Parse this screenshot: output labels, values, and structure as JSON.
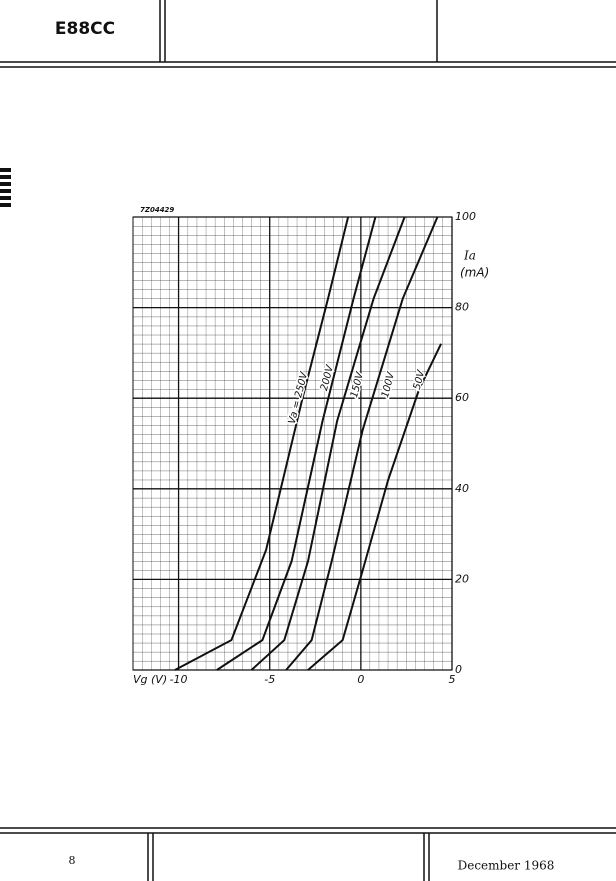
{
  "header": {
    "title": "E88CC"
  },
  "footer": {
    "page": "8",
    "date": "December 1968"
  },
  "chart_data": {
    "type": "line",
    "figure_code": "7Z04429",
    "x_label": "Vg (V)",
    "y_label": "Ia",
    "y_unit": "(mA)",
    "xlim": [
      -12.5,
      5
    ],
    "ylim": [
      0,
      100
    ],
    "xticks": [
      -10,
      -5,
      0,
      5
    ],
    "yticks": [
      0,
      20,
      40,
      60,
      80,
      100
    ],
    "grid": true,
    "series": [
      {
        "name": "Va = 250V",
        "color": "#111111",
        "x": [
          -10.2,
          -7.1,
          -5.2,
          -3.2,
          -1.8,
          -0.7
        ],
        "values": [
          0,
          6.6,
          26.5,
          60,
          82,
          100
        ]
      },
      {
        "name": "200V",
        "color": "#111111",
        "x": [
          -7.9,
          -5.4,
          -3.8,
          -2.1,
          -0.4,
          0.8
        ],
        "values": [
          0,
          6.6,
          24,
          55,
          82,
          100
        ]
      },
      {
        "name": "150V",
        "color": "#111111",
        "x": [
          -6.0,
          -4.2,
          -2.9,
          -1.3,
          0.7,
          2.4
        ],
        "values": [
          0,
          6.6,
          24,
          55,
          82,
          100
        ]
      },
      {
        "name": "100V",
        "color": "#111111",
        "x": [
          -4.1,
          -2.7,
          -1.6,
          0.1,
          2.3,
          4.2
        ],
        "values": [
          0,
          6.6,
          24,
          53,
          82,
          100
        ]
      },
      {
        "name": "50V",
        "color": "#111111",
        "x": [
          -2.9,
          -1.0,
          0.1,
          1.5,
          3.2,
          4.4
        ],
        "values": [
          0,
          6.6,
          22,
          42,
          62,
          72
        ]
      }
    ]
  }
}
